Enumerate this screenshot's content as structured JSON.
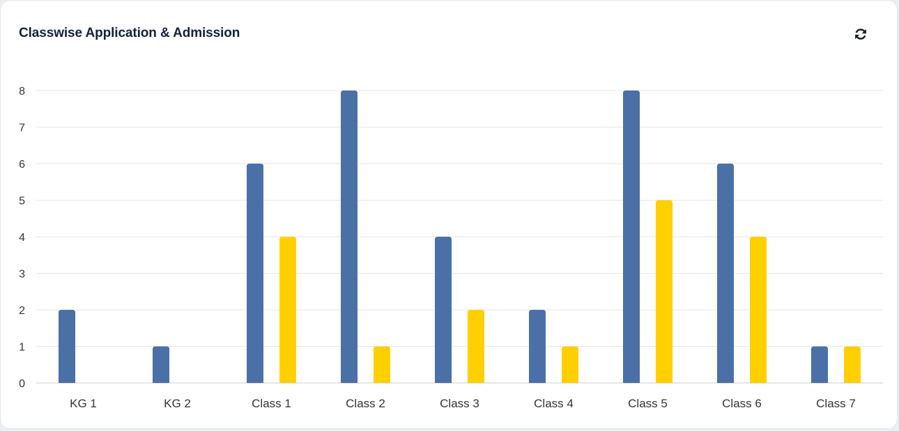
{
  "card": {
    "title": "Classwise Application & Admission",
    "refresh_icon": "refresh-icon"
  },
  "chart_data": {
    "type": "bar",
    "categories": [
      "KG 1",
      "KG 2",
      "Class 1",
      "Class 2",
      "Class 3",
      "Class 4",
      "Class 5",
      "Class 6",
      "Class 7"
    ],
    "series": [
      {
        "values": [
          2,
          1,
          6,
          8,
          4,
          2,
          8,
          6,
          1
        ],
        "color": "#4a70a7"
      },
      {
        "values": [
          0,
          0,
          4,
          1,
          2,
          1,
          5,
          4,
          1
        ],
        "color": "#ffcf00"
      }
    ],
    "ylim": [
      0,
      8
    ],
    "yticks": [
      0,
      1,
      2,
      3,
      4,
      5,
      6,
      7,
      8
    ],
    "grid": true,
    "legend": "none"
  }
}
